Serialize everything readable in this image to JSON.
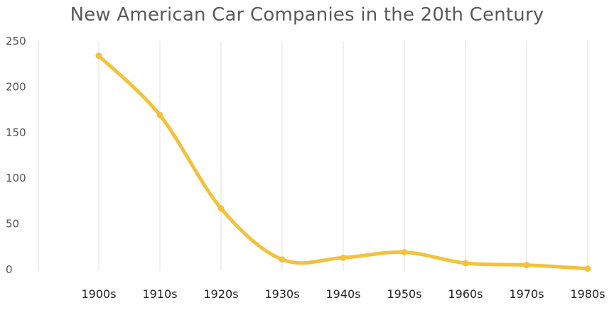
{
  "chart_data": {
    "type": "line",
    "title": "New American Car Companies in the 20th Century",
    "xlabel": "",
    "ylabel": "",
    "categories": [
      "1900s",
      "1910s",
      "1920s",
      "1930s",
      "1940s",
      "1950s",
      "1960s",
      "1970s",
      "1980s"
    ],
    "series": [
      {
        "values": [
          234,
          169,
          67,
          11,
          13,
          19,
          7,
          5,
          1
        ],
        "color": "#f2c23c"
      }
    ],
    "ylim": [
      0,
      250
    ],
    "yticks": [
      0,
      50,
      100,
      150,
      200,
      250
    ],
    "grid": "vertical",
    "legend": "none",
    "smooth": true
  }
}
